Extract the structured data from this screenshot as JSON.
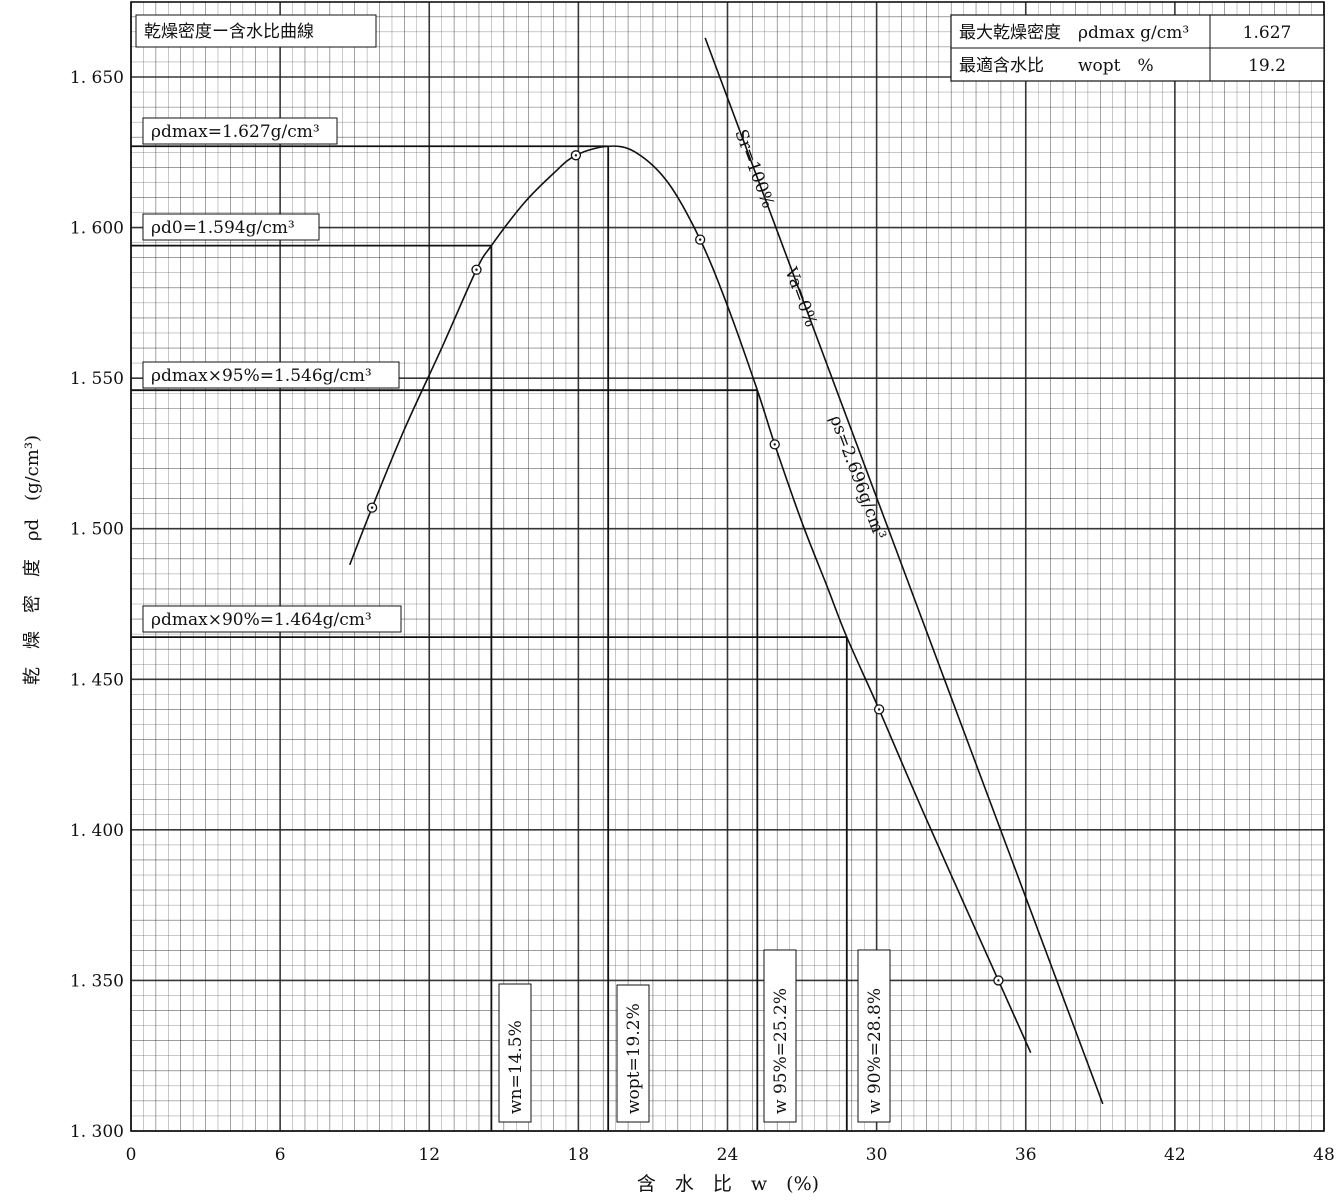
{
  "chart_data": {
    "type": "line",
    "title": "乾燥密度ー含水比曲線",
    "xlabel": "含　水　比　w　(%)",
    "ylabel": "乾　燥　密　度　ρd　(g/cm³)",
    "xlim": [
      0,
      48
    ],
    "ylim": [
      1.3,
      1.65
    ],
    "x_ticks": [
      "0",
      "6",
      "12",
      "18",
      "24",
      "30",
      "36",
      "42",
      "48"
    ],
    "y_ticks": [
      "1.300",
      "1.350",
      "1.400",
      "1.450",
      "1.500",
      "1.550",
      "1.600",
      "1.650"
    ],
    "grid": true,
    "points": [
      {
        "x": 9.7,
        "y": 1.507
      },
      {
        "x": 13.9,
        "y": 1.586
      },
      {
        "x": 17.9,
        "y": 1.624
      },
      {
        "x": 22.9,
        "y": 1.596
      },
      {
        "x": 25.9,
        "y": 1.528
      },
      {
        "x": 30.1,
        "y": 1.44
      },
      {
        "x": 34.9,
        "y": 1.35
      }
    ],
    "curve": [
      {
        "x": 8.8,
        "y": 1.488
      },
      {
        "x": 9.7,
        "y": 1.507
      },
      {
        "x": 11.0,
        "y": 1.533
      },
      {
        "x": 12.5,
        "y": 1.56
      },
      {
        "x": 13.9,
        "y": 1.586
      },
      {
        "x": 14.5,
        "y": 1.594
      },
      {
        "x": 15.8,
        "y": 1.608
      },
      {
        "x": 17.0,
        "y": 1.618
      },
      {
        "x": 17.9,
        "y": 1.624
      },
      {
        "x": 19.2,
        "y": 1.627
      },
      {
        "x": 20.3,
        "y": 1.625
      },
      {
        "x": 21.6,
        "y": 1.615
      },
      {
        "x": 22.9,
        "y": 1.596
      },
      {
        "x": 24.0,
        "y": 1.574
      },
      {
        "x": 25.2,
        "y": 1.546
      },
      {
        "x": 25.9,
        "y": 1.528
      },
      {
        "x": 27.0,
        "y": 1.502
      },
      {
        "x": 28.0,
        "y": 1.481
      },
      {
        "x": 28.8,
        "y": 1.464
      },
      {
        "x": 30.1,
        "y": 1.44
      },
      {
        "x": 31.5,
        "y": 1.413
      },
      {
        "x": 33.0,
        "y": 1.385
      },
      {
        "x": 34.9,
        "y": 1.35
      },
      {
        "x": 36.2,
        "y": 1.326
      }
    ],
    "saturation_line": {
      "x1": 23.1,
      "y1": 1.663,
      "x2": 39.1,
      "y2": 1.309
    },
    "saturation_labels": [
      "Sr=100%",
      "Va=0%",
      "ρs=2.696g/cm³"
    ],
    "reference_lines": [
      {
        "label": "ρdmax=1.627g/cm³",
        "x": 19.2,
        "y": 1.627
      },
      {
        "label": "ρd0=1.594g/cm³",
        "x": 14.5,
        "y": 1.594
      },
      {
        "label": "ρdmax×95%=1.546g/cm³",
        "x": 25.2,
        "y": 1.546
      },
      {
        "label": "ρdmax×90%=1.464g/cm³",
        "x": 28.8,
        "y": 1.464
      }
    ],
    "vertical_labels": [
      "wn=14.5%",
      "wopt=19.2%",
      "w 95%=25.2%",
      "w 90%=28.8%"
    ],
    "summary_table": [
      {
        "label": "最大乾燥密度　ρdmax g/cm³",
        "value": "1.627"
      },
      {
        "label": "最適含水比　　wopt　%",
        "value": "19.2"
      }
    ]
  }
}
